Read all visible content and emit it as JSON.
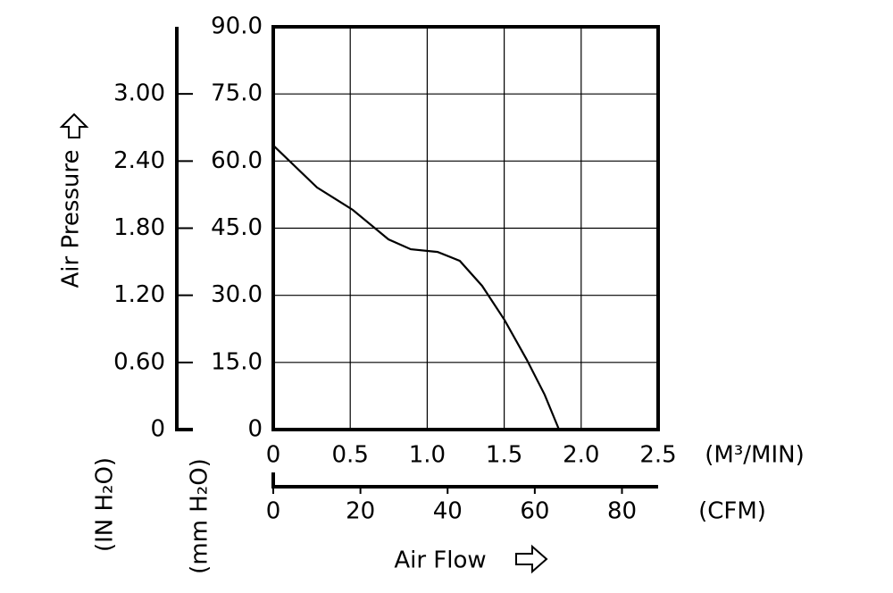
{
  "chart_data": {
    "type": "line",
    "x": [
      0,
      0.284,
      0.516,
      0.748,
      0.893,
      1.067,
      1.212,
      1.357,
      1.502,
      1.647,
      1.763,
      1.856
    ],
    "series": [
      {
        "values": [
          63.5,
          54.1,
          49.1,
          42.5,
          40.3,
          39.7,
          37.7,
          32.1,
          24.5,
          15.6,
          7.8,
          0
        ],
        "color": "#000000"
      }
    ],
    "xlim": [
      0,
      2.5
    ],
    "xticks": [
      0,
      0.5,
      {
        "value": 1,
        "label": "1.0"
      },
      1.5,
      {
        "value": 2,
        "label": "2.0"
      },
      2.5
    ],
    "xlabel": "(M³/MIN)",
    "x2lim": [
      0,
      88.3
    ],
    "x2ticks": [
      0,
      20,
      40,
      60,
      80
    ],
    "x2label": "(CFM)",
    "ylim": [
      0,
      90
    ],
    "yticks": [
      0,
      {
        "value": 15,
        "label": "15.0"
      },
      {
        "value": 30,
        "label": "30.0"
      },
      {
        "value": 45,
        "label": "45.0"
      },
      {
        "value": 60,
        "label": "60.0"
      },
      {
        "value": 75,
        "label": "75.0"
      },
      {
        "value": 90,
        "label": "90.0"
      }
    ],
    "ylabel": "(mm H₂O)",
    "y2lim": [
      0,
      3.6
    ],
    "y2ticks": [
      0,
      {
        "value": 0.6,
        "label": "0.60"
      },
      {
        "value": 1.2,
        "label": "1.20"
      },
      {
        "value": 1.8,
        "label": "1.80"
      },
      {
        "value": 2.4,
        "label": "2.40"
      },
      {
        "value": 3,
        "label": "3.00"
      }
    ],
    "y2label": "(IN H₂O)",
    "quantity_y": "Air Pressure",
    "quantity_x": "Air Flow",
    "grid": true
  }
}
